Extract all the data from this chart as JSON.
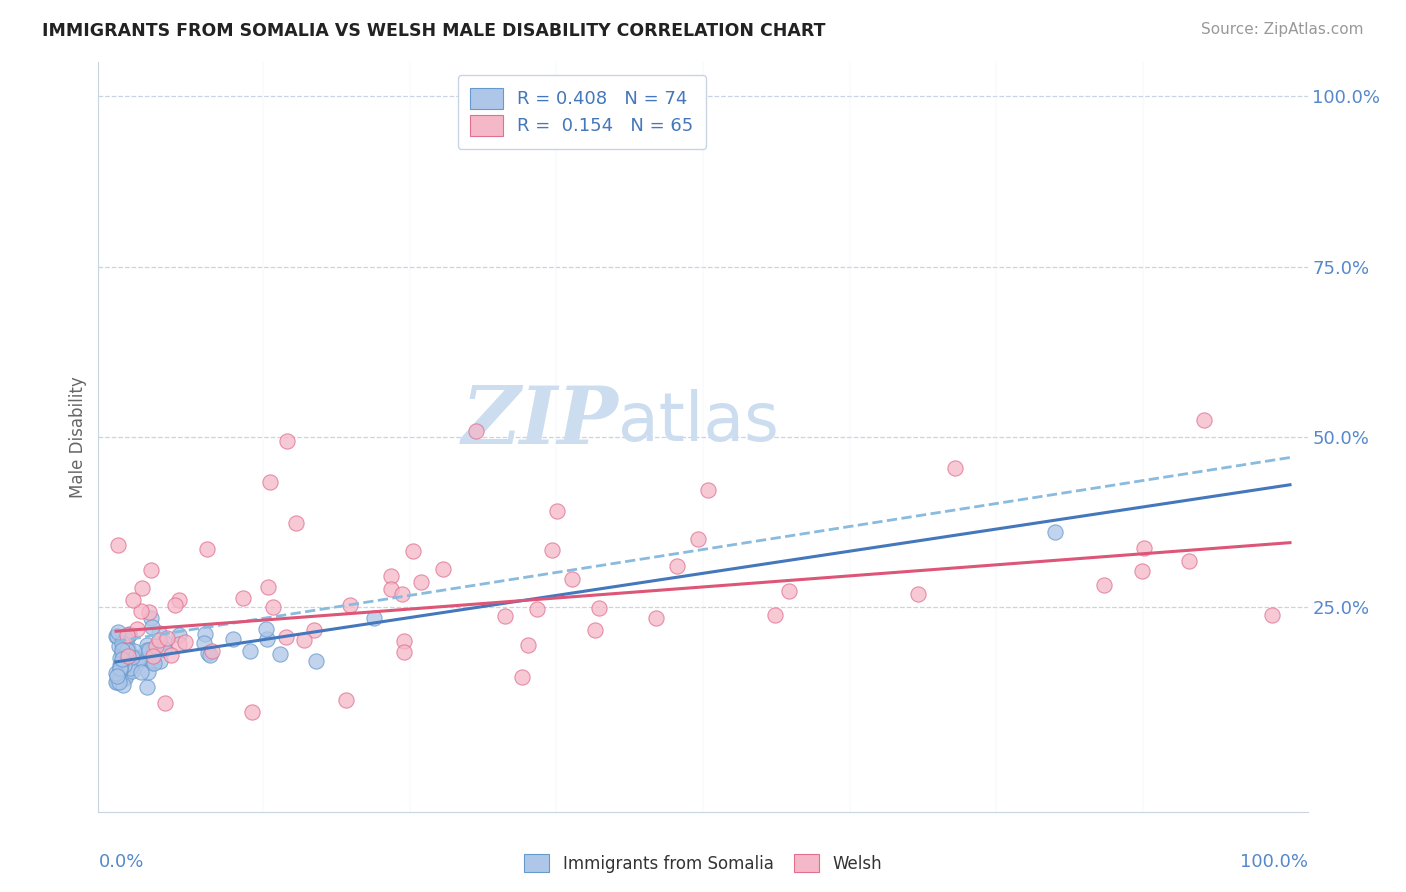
{
  "title": "IMMIGRANTS FROM SOMALIA VS WELSH MALE DISABILITY CORRELATION CHART",
  "source": "Source: ZipAtlas.com",
  "ylabel": "Male Disability",
  "legend_somalia": {
    "R": 0.408,
    "N": 74
  },
  "legend_welsh": {
    "R": 0.154,
    "N": 65
  },
  "color_somalia_fill": "#aec6e8",
  "color_somalia_edge": "#6699cc",
  "color_welsh_fill": "#f5b8c8",
  "color_welsh_edge": "#e07090",
  "color_trend_somalia_solid": "#4477bb",
  "color_trend_somalia_dash": "#88bbdd",
  "color_trend_welsh": "#dd5577",
  "watermark_zip": "ZIP",
  "watermark_atlas": "atlas",
  "watermark_color": "#ccddf0",
  "background": "#ffffff",
  "grid_color": "#c8d4e4",
  "tick_color": "#5588cc",
  "right_ytick_labels": [
    "100.0%",
    "75.0%",
    "50.0%",
    "25.0%"
  ],
  "right_ytick_vals": [
    1.0,
    0.75,
    0.5,
    0.25
  ],
  "xlim": [
    -0.015,
    1.015
  ],
  "ylim": [
    -0.05,
    1.05
  ]
}
